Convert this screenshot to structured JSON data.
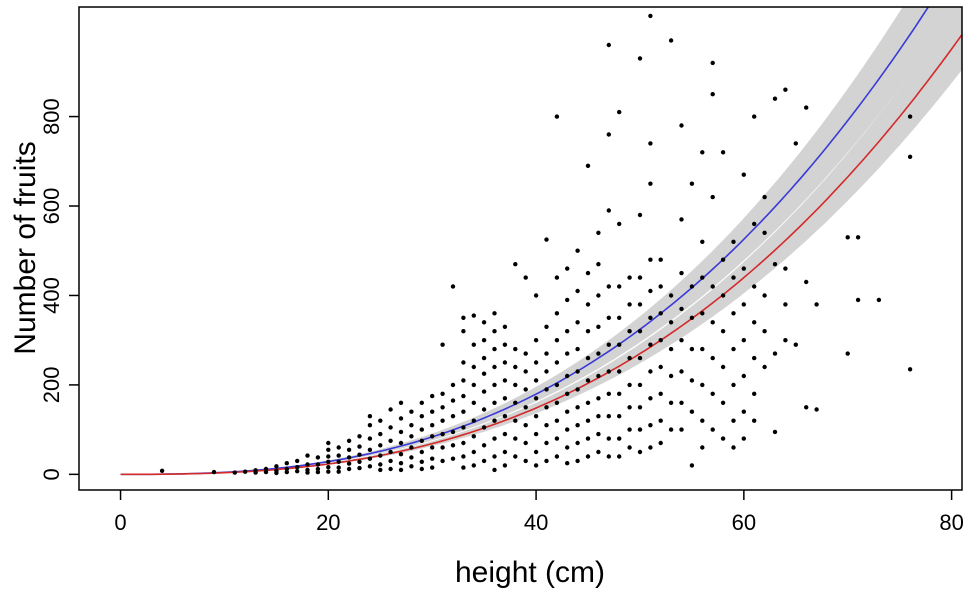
{
  "chart_data": {
    "type": "scatter",
    "title": "",
    "xlabel": "height (cm)",
    "ylabel": "Number of fruits",
    "xlim": [
      -4,
      81
    ],
    "ylim": [
      -35,
      1045
    ],
    "x_ticks": [
      0,
      20,
      40,
      60,
      80
    ],
    "y_ticks": [
      0,
      200,
      400,
      600,
      800
    ],
    "x_tick_labels": [
      "0",
      "20",
      "40",
      "60",
      "80"
    ],
    "y_tick_labels": [
      "0",
      "200",
      "400",
      "600",
      "800"
    ],
    "grid": false,
    "legend": "none",
    "points": [
      [
        4,
        8
      ],
      [
        9,
        5
      ],
      [
        11,
        4
      ],
      [
        12,
        6
      ],
      [
        13,
        9
      ],
      [
        13,
        4
      ],
      [
        14,
        12
      ],
      [
        14,
        5
      ],
      [
        15,
        18
      ],
      [
        15,
        8
      ],
      [
        15,
        3
      ],
      [
        16,
        25
      ],
      [
        16,
        12
      ],
      [
        16,
        5
      ],
      [
        17,
        30
      ],
      [
        17,
        16
      ],
      [
        17,
        7
      ],
      [
        18,
        42
      ],
      [
        18,
        22
      ],
      [
        18,
        10
      ],
      [
        18,
        4
      ],
      [
        19,
        38
      ],
      [
        19,
        22
      ],
      [
        19,
        12
      ],
      [
        19,
        5
      ],
      [
        20,
        70
      ],
      [
        20,
        55
      ],
      [
        20,
        40
      ],
      [
        20,
        28
      ],
      [
        20,
        16
      ],
      [
        20,
        6
      ],
      [
        21,
        60
      ],
      [
        21,
        42
      ],
      [
        21,
        28
      ],
      [
        21,
        15
      ],
      [
        21,
        6
      ],
      [
        22,
        75
      ],
      [
        22,
        55
      ],
      [
        22,
        38
      ],
      [
        22,
        24
      ],
      [
        22,
        12
      ],
      [
        23,
        85
      ],
      [
        23,
        62
      ],
      [
        23,
        44
      ],
      [
        23,
        28
      ],
      [
        23,
        14
      ],
      [
        24,
        130
      ],
      [
        24,
        110
      ],
      [
        24,
        80
      ],
      [
        24,
        55
      ],
      [
        24,
        35
      ],
      [
        24,
        18
      ],
      [
        25,
        120
      ],
      [
        25,
        90
      ],
      [
        25,
        65
      ],
      [
        25,
        42
      ],
      [
        25,
        22
      ],
      [
        25,
        10
      ],
      [
        26,
        145
      ],
      [
        26,
        105
      ],
      [
        26,
        75
      ],
      [
        26,
        50
      ],
      [
        26,
        30
      ],
      [
        26,
        12
      ],
      [
        27,
        160
      ],
      [
        27,
        125
      ],
      [
        27,
        95
      ],
      [
        27,
        70
      ],
      [
        27,
        45
      ],
      [
        27,
        25
      ],
      [
        27,
        10
      ],
      [
        28,
        140
      ],
      [
        28,
        110
      ],
      [
        28,
        85
      ],
      [
        28,
        60
      ],
      [
        28,
        38
      ],
      [
        28,
        18
      ],
      [
        29,
        160
      ],
      [
        29,
        130
      ],
      [
        29,
        100
      ],
      [
        29,
        75
      ],
      [
        29,
        50
      ],
      [
        29,
        28
      ],
      [
        29,
        12
      ],
      [
        30,
        175
      ],
      [
        30,
        140
      ],
      [
        30,
        110
      ],
      [
        30,
        85
      ],
      [
        30,
        60
      ],
      [
        30,
        35
      ],
      [
        30,
        15
      ],
      [
        31,
        290
      ],
      [
        31,
        180
      ],
      [
        31,
        150
      ],
      [
        31,
        120
      ],
      [
        31,
        90
      ],
      [
        31,
        60
      ],
      [
        31,
        30
      ],
      [
        32,
        420
      ],
      [
        32,
        200
      ],
      [
        32,
        165
      ],
      [
        32,
        130
      ],
      [
        32,
        95
      ],
      [
        32,
        65
      ],
      [
        32,
        35
      ],
      [
        33,
        350
      ],
      [
        33,
        320
      ],
      [
        33,
        250
      ],
      [
        33,
        210
      ],
      [
        33,
        175
      ],
      [
        33,
        140
      ],
      [
        33,
        105
      ],
      [
        33,
        70
      ],
      [
        33,
        40
      ],
      [
        33,
        15
      ],
      [
        34,
        355
      ],
      [
        34,
        290
      ],
      [
        34,
        240
      ],
      [
        34,
        200
      ],
      [
        34,
        160
      ],
      [
        34,
        120
      ],
      [
        34,
        85
      ],
      [
        34,
        50
      ],
      [
        34,
        20
      ],
      [
        35,
        340
      ],
      [
        35,
        300
      ],
      [
        35,
        260
      ],
      [
        35,
        225
      ],
      [
        35,
        185
      ],
      [
        35,
        145
      ],
      [
        35,
        105
      ],
      [
        35,
        65
      ],
      [
        35,
        30
      ],
      [
        36,
        360
      ],
      [
        36,
        320
      ],
      [
        36,
        280
      ],
      [
        36,
        240
      ],
      [
        36,
        200
      ],
      [
        36,
        160
      ],
      [
        36,
        120
      ],
      [
        36,
        80
      ],
      [
        36,
        40
      ],
      [
        36,
        10
      ],
      [
        37,
        330
      ],
      [
        37,
        290
      ],
      [
        37,
        250
      ],
      [
        37,
        210
      ],
      [
        37,
        170
      ],
      [
        37,
        130
      ],
      [
        37,
        90
      ],
      [
        37,
        50
      ],
      [
        37,
        20
      ],
      [
        38,
        470
      ],
      [
        38,
        280
      ],
      [
        38,
        240
      ],
      [
        38,
        200
      ],
      [
        38,
        160
      ],
      [
        38,
        120
      ],
      [
        38,
        80
      ],
      [
        38,
        40
      ],
      [
        39,
        440
      ],
      [
        39,
        270
      ],
      [
        39,
        230
      ],
      [
        39,
        190
      ],
      [
        39,
        150
      ],
      [
        39,
        110
      ],
      [
        39,
        70
      ],
      [
        39,
        30
      ],
      [
        40,
        400
      ],
      [
        40,
        300
      ],
      [
        40,
        250
      ],
      [
        40,
        210
      ],
      [
        40,
        170
      ],
      [
        40,
        130
      ],
      [
        40,
        90
      ],
      [
        40,
        50
      ],
      [
        40,
        20
      ],
      [
        41,
        525
      ],
      [
        41,
        330
      ],
      [
        41,
        270
      ],
      [
        41,
        230
      ],
      [
        41,
        190
      ],
      [
        41,
        150
      ],
      [
        41,
        110
      ],
      [
        41,
        70
      ],
      [
        41,
        30
      ],
      [
        42,
        800
      ],
      [
        42,
        440
      ],
      [
        42,
        360
      ],
      [
        42,
        300
      ],
      [
        42,
        250
      ],
      [
        42,
        200
      ],
      [
        42,
        160
      ],
      [
        42,
        120
      ],
      [
        42,
        80
      ],
      [
        42,
        40
      ],
      [
        43,
        460
      ],
      [
        43,
        390
      ],
      [
        43,
        320
      ],
      [
        43,
        270
      ],
      [
        43,
        220
      ],
      [
        43,
        180
      ],
      [
        43,
        140
      ],
      [
        43,
        100
      ],
      [
        43,
        60
      ],
      [
        43,
        25
      ],
      [
        44,
        500
      ],
      [
        44,
        410
      ],
      [
        44,
        340
      ],
      [
        44,
        280
      ],
      [
        44,
        230
      ],
      [
        44,
        190
      ],
      [
        44,
        150
      ],
      [
        44,
        110
      ],
      [
        44,
        70
      ],
      [
        44,
        30
      ],
      [
        45,
        690
      ],
      [
        45,
        450
      ],
      [
        45,
        380
      ],
      [
        45,
        320
      ],
      [
        45,
        260
      ],
      [
        45,
        210
      ],
      [
        45,
        160
      ],
      [
        45,
        120
      ],
      [
        45,
        80
      ],
      [
        45,
        40
      ],
      [
        46,
        540
      ],
      [
        46,
        470
      ],
      [
        46,
        400
      ],
      [
        46,
        330
      ],
      [
        46,
        270
      ],
      [
        46,
        220
      ],
      [
        46,
        170
      ],
      [
        46,
        130
      ],
      [
        46,
        90
      ],
      [
        46,
        50
      ],
      [
        47,
        960
      ],
      [
        47,
        760
      ],
      [
        47,
        590
      ],
      [
        47,
        420
      ],
      [
        47,
        350
      ],
      [
        47,
        290
      ],
      [
        47,
        230
      ],
      [
        47,
        180
      ],
      [
        47,
        130
      ],
      [
        47,
        80
      ],
      [
        47,
        40
      ],
      [
        48,
        810
      ],
      [
        48,
        560
      ],
      [
        48,
        420
      ],
      [
        48,
        350
      ],
      [
        48,
        290
      ],
      [
        48,
        230
      ],
      [
        48,
        180
      ],
      [
        48,
        130
      ],
      [
        48,
        80
      ],
      [
        48,
        40
      ],
      [
        49,
        440
      ],
      [
        49,
        380
      ],
      [
        49,
        320
      ],
      [
        49,
        260
      ],
      [
        49,
        200
      ],
      [
        49,
        150
      ],
      [
        49,
        100
      ],
      [
        49,
        60
      ],
      [
        50,
        930
      ],
      [
        50,
        580
      ],
      [
        50,
        440
      ],
      [
        50,
        380
      ],
      [
        50,
        320
      ],
      [
        50,
        260
      ],
      [
        50,
        200
      ],
      [
        50,
        150
      ],
      [
        50,
        100
      ],
      [
        50,
        50
      ],
      [
        51,
        1025
      ],
      [
        51,
        740
      ],
      [
        51,
        650
      ],
      [
        51,
        480
      ],
      [
        51,
        410
      ],
      [
        51,
        350
      ],
      [
        51,
        290
      ],
      [
        51,
        230
      ],
      [
        51,
        170
      ],
      [
        51,
        110
      ],
      [
        51,
        60
      ],
      [
        52,
        480
      ],
      [
        52,
        420
      ],
      [
        52,
        360
      ],
      [
        52,
        300
      ],
      [
        52,
        240
      ],
      [
        52,
        180
      ],
      [
        52,
        120
      ],
      [
        52,
        70
      ],
      [
        53,
        970
      ],
      [
        53,
        400
      ],
      [
        53,
        340
      ],
      [
        53,
        280
      ],
      [
        53,
        220
      ],
      [
        53,
        160
      ],
      [
        53,
        100
      ],
      [
        54,
        780
      ],
      [
        54,
        570
      ],
      [
        54,
        450
      ],
      [
        54,
        370
      ],
      [
        54,
        300
      ],
      [
        54,
        230
      ],
      [
        54,
        160
      ],
      [
        54,
        100
      ],
      [
        55,
        650
      ],
      [
        55,
        420
      ],
      [
        55,
        350
      ],
      [
        55,
        280
      ],
      [
        55,
        210
      ],
      [
        55,
        140
      ],
      [
        55,
        20
      ],
      [
        56,
        720
      ],
      [
        56,
        520
      ],
      [
        56,
        440
      ],
      [
        56,
        360
      ],
      [
        56,
        280
      ],
      [
        56,
        200
      ],
      [
        56,
        120
      ],
      [
        56,
        60
      ],
      [
        57,
        920
      ],
      [
        57,
        850
      ],
      [
        57,
        620
      ],
      [
        57,
        420
      ],
      [
        57,
        340
      ],
      [
        57,
        260
      ],
      [
        57,
        180
      ],
      [
        57,
        100
      ],
      [
        58,
        720
      ],
      [
        58,
        480
      ],
      [
        58,
        400
      ],
      [
        58,
        320
      ],
      [
        58,
        240
      ],
      [
        58,
        160
      ],
      [
        58,
        80
      ],
      [
        59,
        520
      ],
      [
        59,
        440
      ],
      [
        59,
        360
      ],
      [
        59,
        280
      ],
      [
        59,
        200
      ],
      [
        59,
        120
      ],
      [
        59,
        60
      ],
      [
        60,
        670
      ],
      [
        60,
        460
      ],
      [
        60,
        380
      ],
      [
        60,
        300
      ],
      [
        60,
        220
      ],
      [
        60,
        140
      ],
      [
        60,
        80
      ],
      [
        61,
        800
      ],
      [
        61,
        560
      ],
      [
        61,
        420
      ],
      [
        61,
        340
      ],
      [
        61,
        260
      ],
      [
        61,
        180
      ],
      [
        61,
        120
      ],
      [
        62,
        620
      ],
      [
        62,
        540
      ],
      [
        62,
        400
      ],
      [
        62,
        320
      ],
      [
        62,
        240
      ],
      [
        63,
        840
      ],
      [
        63,
        470
      ],
      [
        63,
        270
      ],
      [
        63,
        95
      ],
      [
        64,
        860
      ],
      [
        64,
        460
      ],
      [
        64,
        380
      ],
      [
        64,
        300
      ],
      [
        65,
        740
      ],
      [
        65,
        290
      ],
      [
        66,
        820
      ],
      [
        66,
        430
      ],
      [
        66,
        150
      ],
      [
        67,
        380
      ],
      [
        67,
        145
      ],
      [
        70,
        530
      ],
      [
        70,
        270
      ],
      [
        71,
        530
      ],
      [
        71,
        390
      ],
      [
        73,
        390
      ],
      [
        76,
        800
      ],
      [
        76,
        710
      ],
      [
        76,
        235
      ]
    ],
    "fit_curves": [
      {
        "color": "#3a3ad6",
        "params": {
          "a": 0.0102,
          "b": 2.65
        },
        "band_half_width": 0.09
      },
      {
        "color": "#d42a2a",
        "params": {
          "a": 0.00755,
          "b": 2.68
        },
        "band_half_width": 0.08
      }
    ],
    "band_color": "#d3d3d3"
  }
}
